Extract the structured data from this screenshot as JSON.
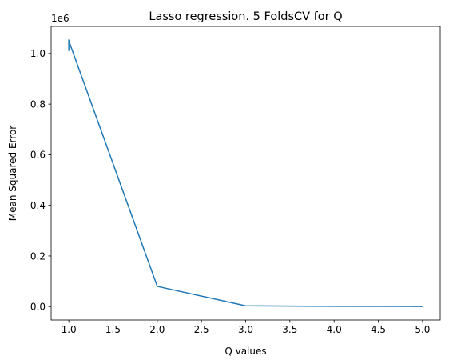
{
  "chart_data": {
    "type": "line",
    "title": "Lasso regression. 5 FoldsCV for Q",
    "xlabel": "Q values",
    "ylabel": "Mean Squared Error",
    "y_offset_label": "1e6",
    "x_ticks": [
      1.0,
      1.5,
      2.0,
      2.5,
      3.0,
      3.5,
      4.0,
      4.5,
      5.0
    ],
    "x_tick_labels": [
      "1.0",
      "1.5",
      "2.0",
      "2.5",
      "3.0",
      "3.5",
      "4.0",
      "4.5",
      "5.0"
    ],
    "y_ticks": [
      0.0,
      0.2,
      0.4,
      0.6,
      0.8,
      1.0
    ],
    "y_tick_labels": [
      "0.0",
      "0.2",
      "0.4",
      "0.6",
      "0.8",
      "1.0"
    ],
    "xlim": [
      0.8,
      5.2
    ],
    "ylim": [
      -0.053,
      1.107
    ],
    "grid": false,
    "series": [
      {
        "color": "#1f77b4",
        "x": [
          1.0,
          2.0,
          3.0,
          4.0,
          5.0
        ],
        "y": [
          1.05,
          0.08,
          0.003,
          0.001,
          0.0005
        ]
      }
    ],
    "spike": {
      "x": 1.0,
      "y_low": 1.01,
      "y_high": 1.055
    }
  }
}
